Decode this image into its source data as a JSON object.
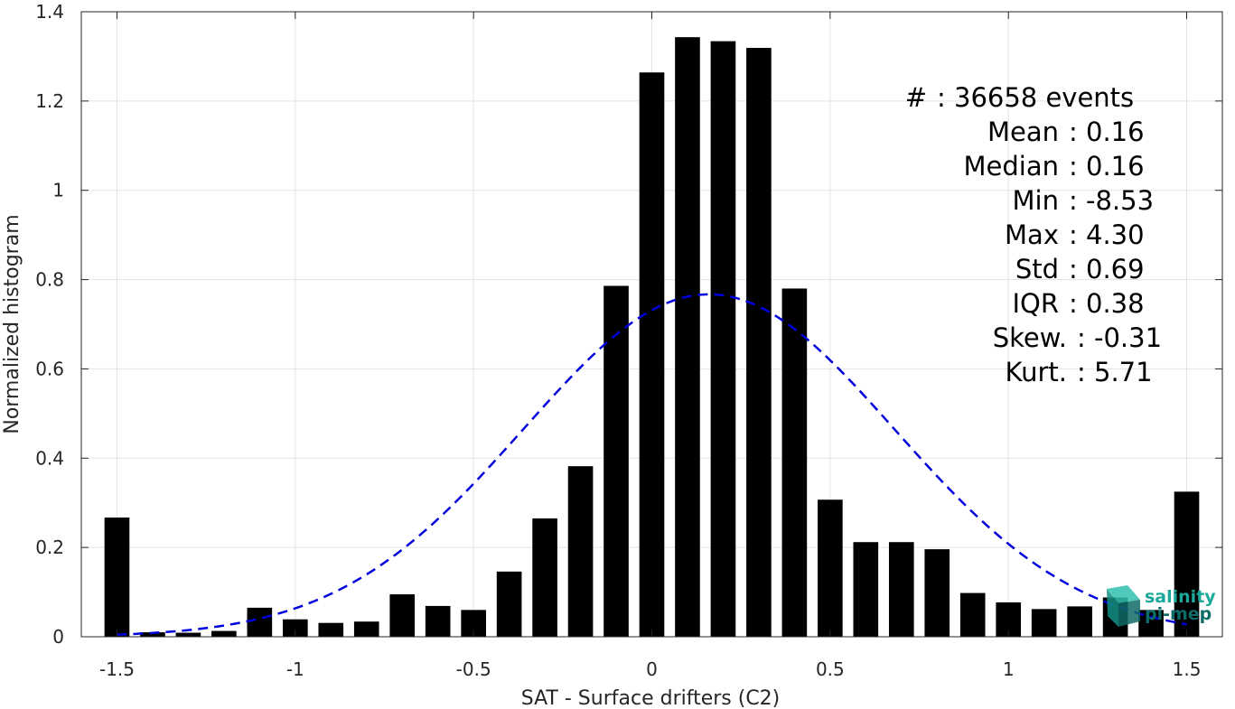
{
  "chart_data": {
    "type": "bar",
    "xlabel": "SAT - Surface drifters (C2)",
    "ylabel": "Normalized histogram",
    "xlim": [
      -1.6,
      1.6
    ],
    "ylim": [
      0,
      1.4
    ],
    "xticks": [
      -1.5,
      -1,
      -0.5,
      0,
      0.5,
      1,
      1.5
    ],
    "xtick_labels": [
      "-1.5",
      "-1",
      "-0.5",
      "0",
      "0.5",
      "1",
      "1.5"
    ],
    "yticks": [
      0,
      0.2,
      0.4,
      0.6,
      0.8,
      1,
      1.2,
      1.4
    ],
    "ytick_labels": [
      "0",
      "0.2",
      "0.4",
      "0.6",
      "0.8",
      "1",
      "1.2",
      "1.4"
    ],
    "grid": true,
    "bar_color": "#000000",
    "bar_width": 0.07,
    "bars": [
      {
        "x": -1.5,
        "y": 0.267
      },
      {
        "x": -1.4,
        "y": 0.01
      },
      {
        "x": -1.3,
        "y": 0.009
      },
      {
        "x": -1.2,
        "y": 0.013
      },
      {
        "x": -1.1,
        "y": 0.065
      },
      {
        "x": -1.0,
        "y": 0.039
      },
      {
        "x": -0.9,
        "y": 0.031
      },
      {
        "x": -0.8,
        "y": 0.034
      },
      {
        "x": -0.7,
        "y": 0.095
      },
      {
        "x": -0.6,
        "y": 0.069
      },
      {
        "x": -0.5,
        "y": 0.06
      },
      {
        "x": -0.4,
        "y": 0.146
      },
      {
        "x": -0.3,
        "y": 0.265
      },
      {
        "x": -0.2,
        "y": 0.382
      },
      {
        "x": -0.1,
        "y": 0.786
      },
      {
        "x": 0.0,
        "y": 1.264
      },
      {
        "x": 0.1,
        "y": 1.343
      },
      {
        "x": 0.2,
        "y": 1.334
      },
      {
        "x": 0.3,
        "y": 1.319
      },
      {
        "x": 0.4,
        "y": 0.78
      },
      {
        "x": 0.5,
        "y": 0.307
      },
      {
        "x": 0.6,
        "y": 0.212
      },
      {
        "x": 0.7,
        "y": 0.212
      },
      {
        "x": 0.8,
        "y": 0.196
      },
      {
        "x": 0.9,
        "y": 0.098
      },
      {
        "x": 1.0,
        "y": 0.077
      },
      {
        "x": 1.1,
        "y": 0.062
      },
      {
        "x": 1.2,
        "y": 0.068
      },
      {
        "x": 1.3,
        "y": 0.088
      },
      {
        "x": 1.4,
        "y": 0.06
      },
      {
        "x": 1.5,
        "y": 0.325
      }
    ],
    "fit_curve": {
      "type": "gaussian",
      "mean": 0.16,
      "std": 0.52,
      "peak": 0.767,
      "x_range": [
        -1.5,
        1.5
      ],
      "color": "#0000dd",
      "style": "dashed"
    },
    "stats": [
      {
        "label": "#  ",
        "value": ": 36658 events"
      },
      {
        "label": "Mean ",
        "value": ": 0.16"
      },
      {
        "label": "Median ",
        "value": ": 0.16"
      },
      {
        "label": "Min ",
        "value": ": -8.53"
      },
      {
        "label": "Max ",
        "value": ": 4.30"
      },
      {
        "label": "Std ",
        "value": ": 0.69"
      },
      {
        "label": "IQR ",
        "value": ": 0.38"
      },
      {
        "label": "Skew. ",
        "value": ": -0.31"
      },
      {
        "label": "Kurt. ",
        "value": ": 5.71"
      }
    ]
  },
  "logo": {
    "line1": "salinity",
    "line2": "pi-mep",
    "color_primary": "#1aa89a",
    "color_secondary": "#0e6b66"
  }
}
